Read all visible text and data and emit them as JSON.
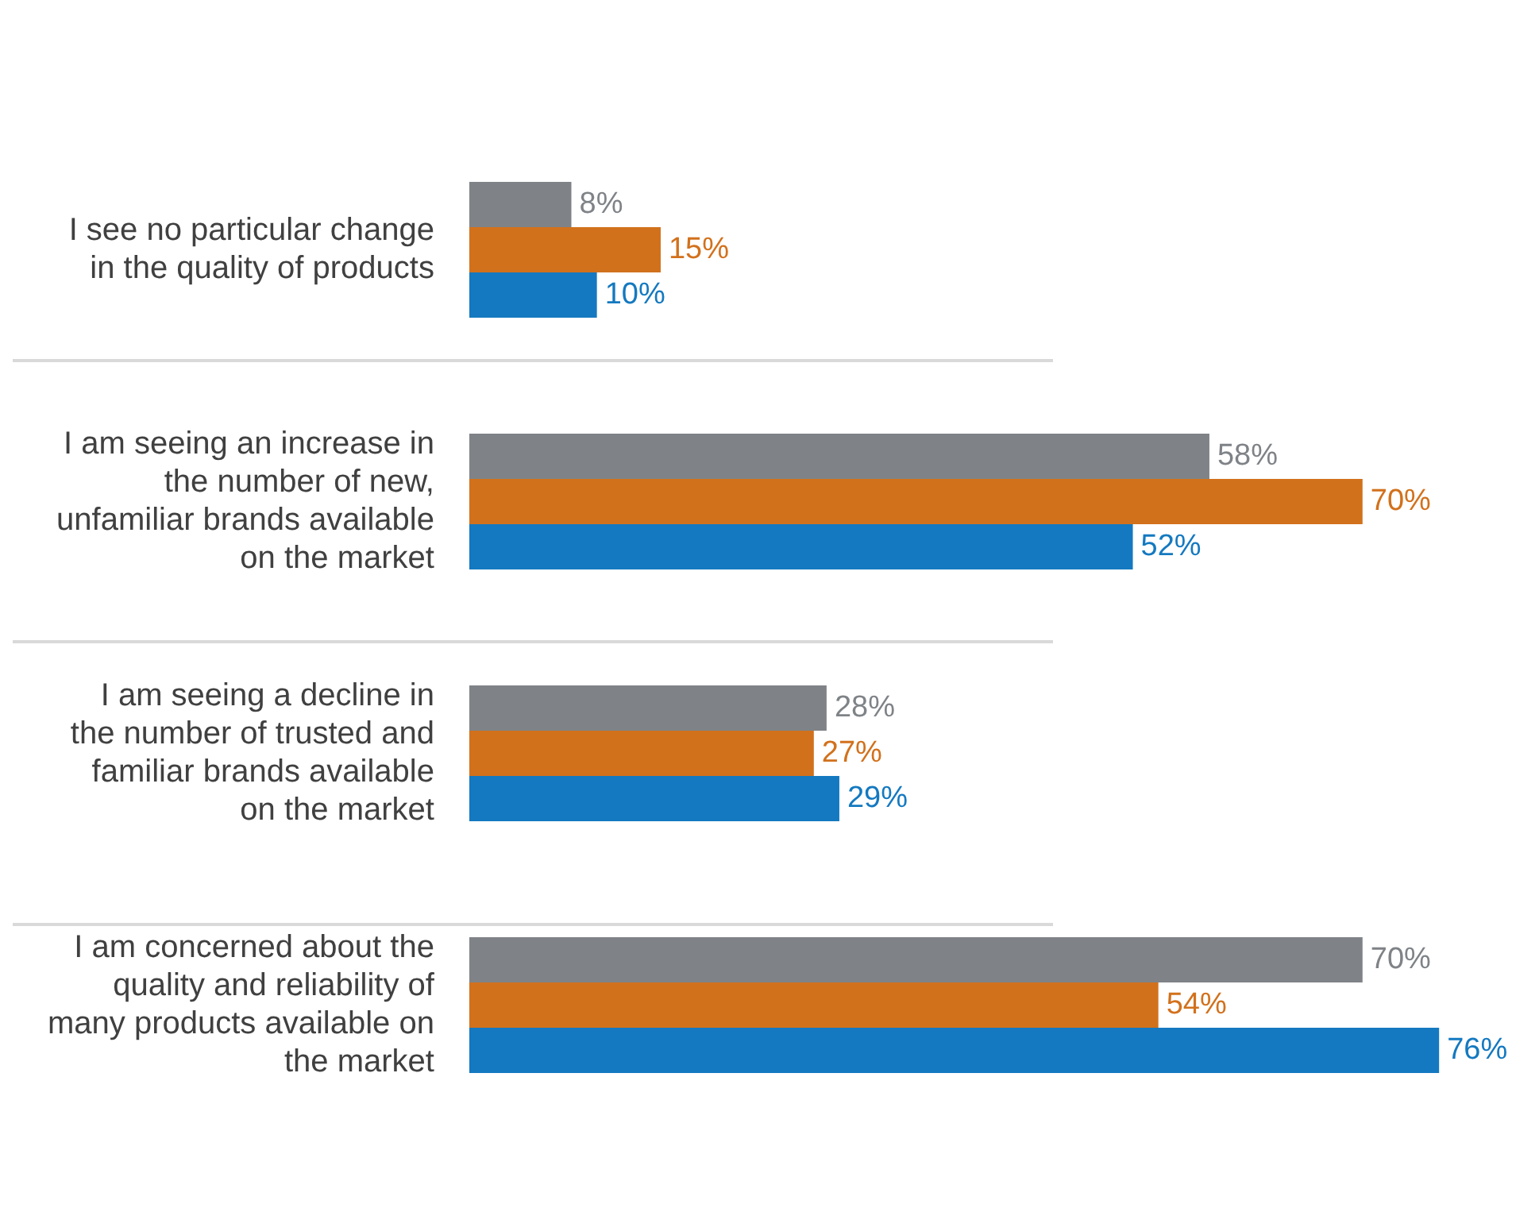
{
  "chart_data": {
    "type": "bar",
    "orientation": "horizontal",
    "categories": [
      "I see no particular change in the quality of products",
      "I am seeing an increase in the number of new, unfamiliar brands available on the market",
      "I am seeing a decline in the number of trusted and familiar brands available on the market",
      "I am concerned about the quality and reliability of many products available on the market"
    ],
    "series": [
      {
        "color": "#7f8387",
        "values": [
          8,
          58,
          28,
          70
        ],
        "value_labels": [
          "8%",
          "58%",
          "28%",
          "70%"
        ]
      },
      {
        "color": "#d2711c",
        "values": [
          15,
          70,
          27,
          54
        ],
        "value_labels": [
          "15%",
          "70%",
          "27%",
          "54%"
        ]
      },
      {
        "color": "#1479c0",
        "values": [
          10,
          52,
          29,
          76
        ],
        "value_labels": [
          "10%",
          "52%",
          "29%",
          "76%"
        ]
      }
    ],
    "legend": false,
    "grid": false
  }
}
